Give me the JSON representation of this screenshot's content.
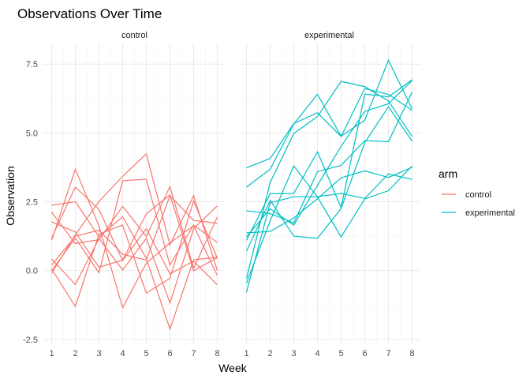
{
  "chart_data": {
    "type": "line",
    "title": "Observations Over Time",
    "xlabel": "Week",
    "ylabel": "Observation",
    "x": [
      1,
      2,
      3,
      4,
      5,
      6,
      7,
      8
    ],
    "xlim": [
      0.65,
      8.35
    ],
    "ylim": [
      -2.65,
      8.25
    ],
    "yticks": [
      -2.5,
      0.0,
      2.5,
      5.0,
      7.5
    ],
    "ytick_labels": [
      "-2.5",
      "0.0",
      "2.5",
      "5.0",
      "7.5"
    ],
    "xtick_labels": [
      "1",
      "2",
      "3",
      "4",
      "5",
      "6",
      "7",
      "8"
    ],
    "grid": true,
    "legend": {
      "title": "arm",
      "position": "right",
      "entries": [
        {
          "label": "control",
          "color": "#F8766D"
        },
        {
          "label": "experimental",
          "color": "#00BFC4"
        }
      ]
    },
    "panels": [
      {
        "label": "control",
        "color": "#F8766D",
        "series": [
          {
            "values": [
              2.37,
              2.5,
              1.23,
              1.95,
              0.44,
              -2.13,
              0.39,
              0.48
            ]
          },
          {
            "values": [
              0.2,
              1.25,
              1.46,
              0.59,
              0.38,
              2.72,
              1.82,
              1.72
            ]
          },
          {
            "values": [
              1.1,
              3.68,
              1.62,
              -1.35,
              0.27,
              1.0,
              1.63,
              -0.18
            ]
          },
          {
            "values": [
              -0.1,
              1.3,
              2.51,
              3.42,
              4.24,
              0.93,
              2.72,
              0.0
            ]
          },
          {
            "values": [
              0.42,
              -0.51,
              1.16,
              0.02,
              1.17,
              -1.18,
              1.52,
              2.35
            ]
          },
          {
            "values": [
              1.77,
              1.4,
              0.12,
              0.38,
              2.06,
              2.75,
              -0.01,
              0.47
            ]
          },
          {
            "values": [
              2.12,
              0.98,
              1.12,
              2.33,
              1.24,
              3.05,
              0.08,
              1.94
            ]
          },
          {
            "values": [
              0.0,
              1.18,
              -0.08,
              3.26,
              3.32,
              0.2,
              1.65,
              1.02
            ]
          },
          {
            "values": [
              1.18,
              3.03,
              2.22,
              0.36,
              1.52,
              -0.12,
              0.34,
              -0.52
            ]
          },
          {
            "values": [
              0.06,
              -1.31,
              1.32,
              1.65,
              -0.82,
              -0.28,
              2.53,
              0.44
            ]
          }
        ]
      },
      {
        "label": "experimental",
        "color": "#00BFC4",
        "series": [
          {
            "values": [
              3.73,
              4.07,
              5.34,
              5.73,
              4.87,
              6.61,
              6.4,
              5.82
            ]
          },
          {
            "values": [
              3.03,
              3.68,
              5.32,
              6.4,
              4.88,
              5.46,
              7.64,
              5.87
            ]
          },
          {
            "values": [
              1.1,
              2.79,
              2.8,
              4.31,
              2.28,
              6.41,
              6.31,
              6.93
            ]
          },
          {
            "values": [
              1.37,
              1.42,
              1.91,
              2.61,
              3.37,
              3.62,
              3.38,
              3.75
            ]
          },
          {
            "values": [
              2.17,
              2.07,
              1.73,
              3.59,
              3.82,
              4.72,
              4.68,
              6.48
            ]
          },
          {
            "values": [
              -0.79,
              2.46,
              2.68,
              2.68,
              2.8,
              2.62,
              3.51,
              3.31
            ]
          },
          {
            "values": [
              0.7,
              2.55,
              1.25,
              1.17,
              2.25,
              4.65,
              5.95,
              4.7
            ]
          },
          {
            "values": [
              -0.46,
              1.8,
              3.8,
              2.67,
              1.22,
              2.6,
              2.9,
              3.8
            ]
          },
          {
            "values": [
              1.22,
              2.24,
              1.65,
              3.1,
              4.51,
              5.78,
              6.06,
              6.9
            ]
          },
          {
            "values": [
              -0.3,
              3.2,
              4.98,
              5.59,
              6.87,
              6.68,
              6.16,
              4.87
            ]
          }
        ]
      }
    ]
  }
}
